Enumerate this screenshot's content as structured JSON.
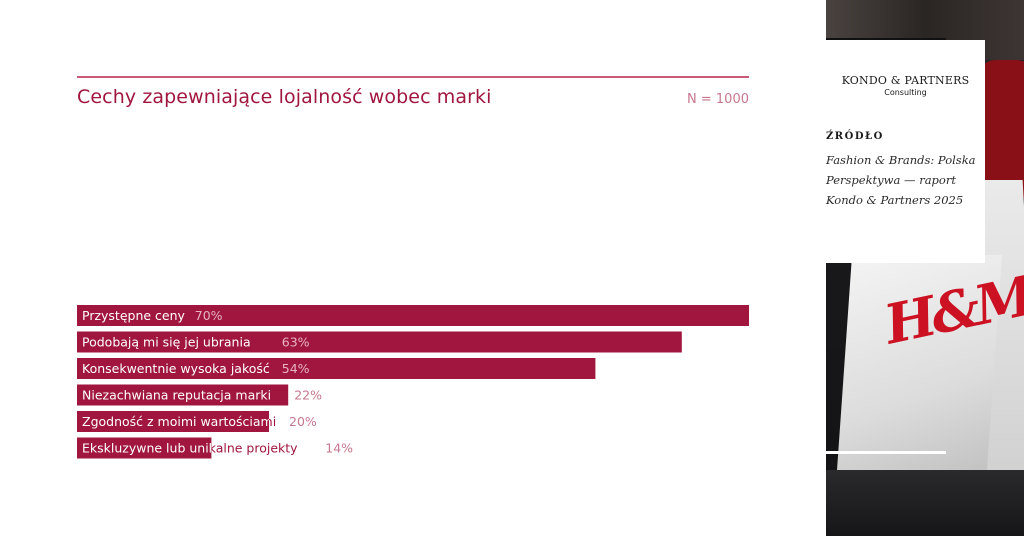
{
  "chart_data": {
    "type": "bar",
    "orientation": "horizontal",
    "title": "Cechy zapewniające lojalność wobec marki",
    "sample_size": "N = 1000",
    "categories": [
      "Przystępne ceny",
      "Podobają mi się jej ubrania",
      "Konsekwentnie wysoka jakość",
      "Niezachwiana reputacja marki",
      "Zgodność z moimi wartościami",
      "Ekskluzywne lub unikalne projekty"
    ],
    "values": [
      70,
      63,
      54,
      22,
      20,
      14
    ],
    "value_labels": [
      "70%",
      "63%",
      "54%",
      "22%",
      "20%",
      "14%"
    ],
    "xlim": [
      0,
      70
    ],
    "grid": false,
    "legend": "none",
    "colors": {
      "bar": "#a0163f",
      "title": "#a0163f",
      "value_label": "#c7778f",
      "label_inside": "#ffffff",
      "label_outside": "#a0163f"
    }
  },
  "source": {
    "brand": "KONDO & PARTNERS",
    "brand_sub": "Consulting",
    "label": "ŹRÓDŁO",
    "text": "Fashion & Brands: Polska Perspektywa — raport Kondo & Partners 2025"
  }
}
